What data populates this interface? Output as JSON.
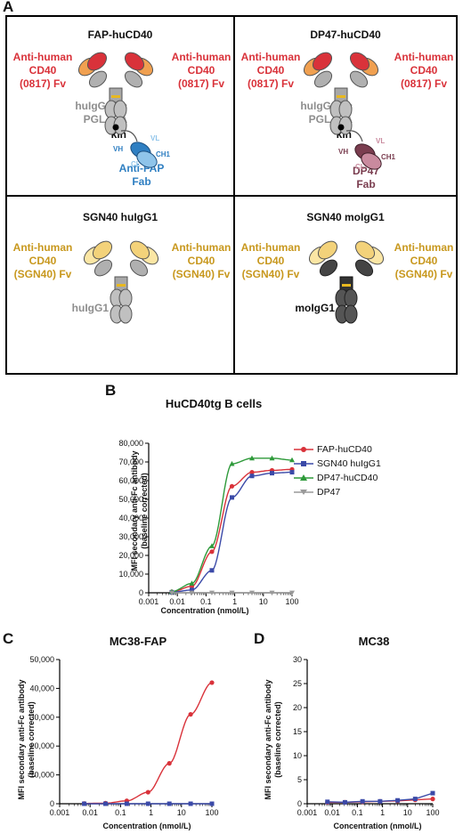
{
  "panels": {
    "A": {
      "letter": "A",
      "boxes": [
        {
          "title": "FAP-huCD40",
          "left_label": "Anti-human\nCD40\n(0817) Fv",
          "right_label": "Anti-human\nCD40\n(0817) Fv",
          "fc_label": "huIgG1 Fc\nPGLALA",
          "kih_label": "kih",
          "fab_label": "Anti-FAP\nFab",
          "domains": [
            "VH",
            "VL",
            "CH1",
            "CL"
          ]
        },
        {
          "title": "DP47-huCD40",
          "left_label": "Anti-human\nCD40\n(0817) Fv",
          "right_label": "Anti-human\nCD40\n(0817) Fv",
          "fc_label": "huIgG1 Fc\nPGLALA",
          "kih_label": "kih",
          "fab_label": "DP47\nFab",
          "domains": [
            "VH",
            "VL",
            "CH1",
            "CL"
          ]
        },
        {
          "title": "SGN40 huIgG1",
          "left_label": "Anti-human\nCD40\n(SGN40) Fv",
          "right_label": "Anti-human\nCD40\n(SGN40) Fv",
          "fc_label": "huIgG1"
        },
        {
          "title": "SGN40 moIgG1",
          "left_label": "Anti-human\nCD40\n(SGN40) Fv",
          "right_label": "Anti-human\nCD40\n(SGN40) Fv",
          "fc_label": "moIgG1"
        }
      ]
    },
    "B": {
      "letter": "B"
    },
    "C": {
      "letter": "C"
    },
    "D": {
      "letter": "D"
    }
  },
  "colors": {
    "red": "#d9323a",
    "blue": "#3b4aa8",
    "green": "#2e9a3a",
    "gray": "#9a9a9a",
    "gold": "#c8981e"
  },
  "chart_data": [
    {
      "panel": "B",
      "type": "line",
      "title": "HuCD40tg B cells",
      "xlabel": "Concentration (nmol/L)",
      "ylabel": "MFI secondary anti-Fc antibody (baseline corrected)",
      "xscale": "log",
      "xlim": [
        0.001,
        100
      ],
      "ylim": [
        0,
        80000
      ],
      "xticks": [
        "0.001",
        "0.01",
        "0.1",
        "1",
        "10",
        "100"
      ],
      "yticks": [
        "0",
        "10,000",
        "20,000",
        "30,000",
        "40,000",
        "50,000",
        "60,000",
        "70,000",
        "80,000"
      ],
      "legend_position": "right",
      "x": [
        0.0064,
        0.032,
        0.16,
        0.8,
        4,
        20,
        100
      ],
      "series": [
        {
          "name": "FAP-huCD40",
          "color": "#d9323a",
          "values": [
            500,
            3500,
            22000,
            57000,
            64500,
            65500,
            66000
          ]
        },
        {
          "name": "SGN40 huIgG1",
          "color": "#3b4aa8",
          "values": [
            300,
            1500,
            12000,
            51000,
            62500,
            64000,
            64500
          ]
        },
        {
          "name": "DP47-huCD40",
          "color": "#2e9a3a",
          "values": [
            600,
            5000,
            25000,
            69000,
            72000,
            72000,
            71000
          ]
        },
        {
          "name": "DP47",
          "color": "#9a9a9a",
          "values": [
            0,
            0,
            0,
            0,
            0,
            0,
            0
          ]
        }
      ]
    },
    {
      "panel": "C",
      "type": "line",
      "title": "MC38-FAP",
      "xlabel": "Concentration (nmol/L)",
      "ylabel": "MFI secondary anti-Fc antibody (baseline corrected)",
      "xscale": "log",
      "xlim": [
        0.001,
        100
      ],
      "ylim": [
        0,
        50000
      ],
      "xticks": [
        "0.001",
        "0.01",
        "0.1",
        "1",
        "10",
        "100"
      ],
      "yticks": [
        "0",
        "10,000",
        "20,000",
        "30,000",
        "40,000",
        "50,000"
      ],
      "x": [
        0.0064,
        0.032,
        0.16,
        0.8,
        4,
        20,
        100
      ],
      "series": [
        {
          "color": "#d9323a",
          "values": [
            100,
            200,
            1000,
            4000,
            14000,
            31000,
            42000
          ]
        },
        {
          "color": "#3b4aa8",
          "values": [
            0,
            0,
            0,
            0,
            0,
            0,
            0
          ]
        }
      ]
    },
    {
      "panel": "D",
      "type": "line",
      "title": "MC38",
      "xlabel": "Concentration (nmol/L)",
      "ylabel": "MFI secondary anti-Fc antibody (baseline corrected)",
      "xscale": "log",
      "xlim": [
        0.001,
        100
      ],
      "ylim": [
        0,
        30
      ],
      "xticks": [
        "0.001",
        "0.01",
        "0.1",
        "1",
        "10",
        "100"
      ],
      "yticks": [
        "0",
        "5",
        "10",
        "15",
        "20",
        "25",
        "30"
      ],
      "x": [
        0.0064,
        0.032,
        0.16,
        0.8,
        4,
        20,
        100
      ],
      "series": [
        {
          "color": "#d9323a",
          "values": [
            0.3,
            0.3,
            0.4,
            0.5,
            0.6,
            0.8,
            1.0
          ]
        },
        {
          "color": "#3b4aa8",
          "values": [
            0.4,
            0.3,
            0.5,
            0.5,
            0.7,
            1.0,
            2.2
          ]
        }
      ]
    }
  ]
}
